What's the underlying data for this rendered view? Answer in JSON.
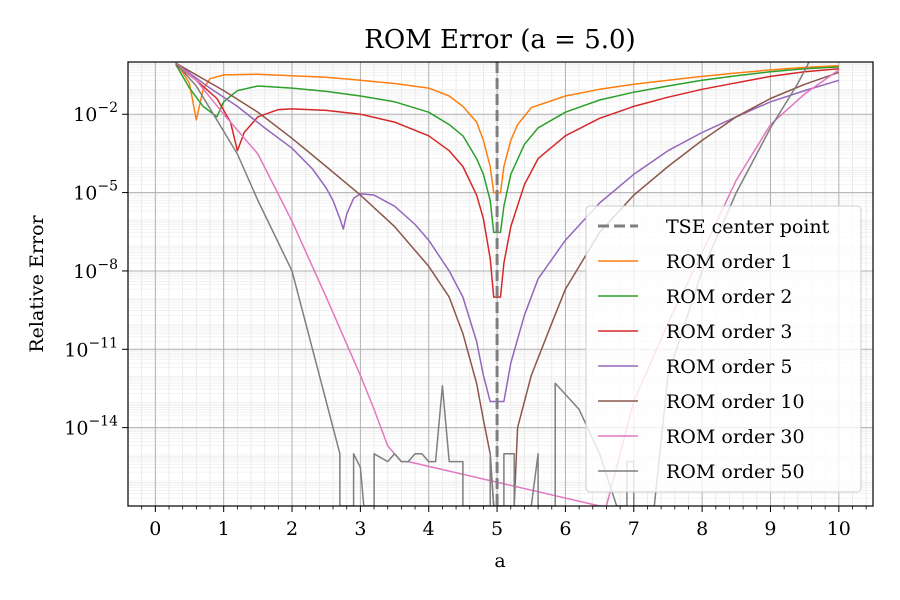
{
  "chart_data": {
    "type": "line",
    "title": "ROM Error (a = 5.0)",
    "xlabel": "a",
    "ylabel": "Relative Error",
    "yscale": "log",
    "xlim": [
      -0.4,
      10.5
    ],
    "ylim": [
      1e-17,
      1
    ],
    "grid": true,
    "minor_grid": true,
    "legend_position": "lower right",
    "x_ticks": [
      0,
      1,
      2,
      3,
      4,
      5,
      6,
      7,
      8,
      9,
      10
    ],
    "x_tick_labels": [
      "0",
      "1",
      "2",
      "3",
      "4",
      "5",
      "6",
      "7",
      "8",
      "9",
      "10"
    ],
    "y_ticks": [
      1e-14,
      1e-11,
      1e-08,
      1e-05,
      0.01
    ],
    "y_tick_labels": [
      {
        "base": "10",
        "exp": "−14"
      },
      {
        "base": "10",
        "exp": "−11"
      },
      {
        "base": "10",
        "exp": "−8"
      },
      {
        "base": "10",
        "exp": "−5"
      },
      {
        "base": "10",
        "exp": "−2"
      }
    ],
    "center_point": {
      "label": "TSE center point",
      "x": 5.0,
      "color": "#7f7f7f"
    },
    "series": [
      {
        "name": "ROM order 1",
        "color": "#ff7f0e",
        "points": [
          [
            0.3,
            0.95
          ],
          [
            0.4,
            0.4
          ],
          [
            0.5,
            0.15
          ],
          [
            0.6,
            0.006
          ],
          [
            0.7,
            0.09
          ],
          [
            0.8,
            0.23
          ],
          [
            1.0,
            0.32
          ],
          [
            1.5,
            0.34
          ],
          [
            2.0,
            0.3
          ],
          [
            2.5,
            0.26
          ],
          [
            3.0,
            0.2
          ],
          [
            3.5,
            0.15
          ],
          [
            4.0,
            0.1
          ],
          [
            4.3,
            0.05
          ],
          [
            4.5,
            0.02
          ],
          [
            4.7,
            0.005
          ],
          [
            4.8,
            0.001
          ],
          [
            4.9,
            0.0001
          ],
          [
            4.95,
            1e-05
          ],
          [
            5.05,
            1e-05
          ],
          [
            5.1,
            0.0001
          ],
          [
            5.2,
            0.001
          ],
          [
            5.3,
            0.004
          ],
          [
            5.5,
            0.018
          ],
          [
            6.0,
            0.05
          ],
          [
            6.5,
            0.09
          ],
          [
            7.0,
            0.14
          ],
          [
            7.5,
            0.2
          ],
          [
            8.0,
            0.28
          ],
          [
            8.5,
            0.38
          ],
          [
            9.0,
            0.5
          ],
          [
            9.5,
            0.62
          ],
          [
            10.0,
            0.72
          ]
        ]
      },
      {
        "name": "ROM order 2",
        "color": "#2ca02c",
        "points": [
          [
            0.3,
            0.8
          ],
          [
            0.5,
            0.1
          ],
          [
            0.7,
            0.02
          ],
          [
            0.9,
            0.008
          ],
          [
            1.0,
            0.03
          ],
          [
            1.2,
            0.08
          ],
          [
            1.5,
            0.12
          ],
          [
            2.0,
            0.1
          ],
          [
            2.5,
            0.075
          ],
          [
            3.0,
            0.05
          ],
          [
            3.5,
            0.03
          ],
          [
            4.0,
            0.012
          ],
          [
            4.3,
            0.004
          ],
          [
            4.5,
            0.0015
          ],
          [
            4.7,
            0.0002
          ],
          [
            4.8,
            5e-05
          ],
          [
            4.9,
            5e-06
          ],
          [
            4.95,
            3e-07
          ],
          [
            5.05,
            3e-07
          ],
          [
            5.1,
            3e-06
          ],
          [
            5.2,
            5e-05
          ],
          [
            5.4,
            0.0007
          ],
          [
            5.6,
            0.003
          ],
          [
            6.0,
            0.012
          ],
          [
            6.5,
            0.035
          ],
          [
            7.0,
            0.07
          ],
          [
            7.5,
            0.12
          ],
          [
            8.0,
            0.2
          ],
          [
            8.5,
            0.3
          ],
          [
            9.0,
            0.42
          ],
          [
            9.5,
            0.55
          ],
          [
            10.0,
            0.65
          ]
        ]
      },
      {
        "name": "ROM order 3",
        "color": "#d62728",
        "points": [
          [
            0.3,
            0.8
          ],
          [
            0.6,
            0.2
          ],
          [
            0.9,
            0.04
          ],
          [
            1.1,
            0.005
          ],
          [
            1.2,
            0.0004
          ],
          [
            1.3,
            0.002
          ],
          [
            1.5,
            0.008
          ],
          [
            1.8,
            0.015
          ],
          [
            2.0,
            0.016
          ],
          [
            2.5,
            0.014
          ],
          [
            3.0,
            0.01
          ],
          [
            3.5,
            0.005
          ],
          [
            4.0,
            0.0015
          ],
          [
            4.3,
            0.0004
          ],
          [
            4.5,
            0.0001
          ],
          [
            4.7,
            8e-06
          ],
          [
            4.8,
            1e-06
          ],
          [
            4.9,
            3e-08
          ],
          [
            4.95,
            1e-09
          ],
          [
            5.05,
            1e-09
          ],
          [
            5.1,
            2e-08
          ],
          [
            5.2,
            5e-07
          ],
          [
            5.4,
            2e-05
          ],
          [
            5.6,
            0.0002
          ],
          [
            6.0,
            0.0015
          ],
          [
            6.5,
            0.007
          ],
          [
            7.0,
            0.02
          ],
          [
            7.5,
            0.045
          ],
          [
            8.0,
            0.09
          ],
          [
            8.5,
            0.16
          ],
          [
            9.0,
            0.28
          ],
          [
            9.5,
            0.42
          ],
          [
            10.0,
            0.55
          ]
        ]
      },
      {
        "name": "ROM order 5",
        "color": "#9467bd",
        "points": [
          [
            0.3,
            0.9
          ],
          [
            0.8,
            0.1
          ],
          [
            1.2,
            0.02
          ],
          [
            1.6,
            0.003
          ],
          [
            2.0,
            0.0005
          ],
          [
            2.3,
            8e-05
          ],
          [
            2.5,
            1.5e-05
          ],
          [
            2.6,
            5e-06
          ],
          [
            2.7,
            1e-06
          ],
          [
            2.75,
            4e-07
          ],
          [
            2.8,
            1.5e-06
          ],
          [
            2.9,
            6e-06
          ],
          [
            3.0,
            9e-06
          ],
          [
            3.2,
            8e-06
          ],
          [
            3.5,
            3e-06
          ],
          [
            3.8,
            6e-07
          ],
          [
            4.0,
            1.5e-07
          ],
          [
            4.3,
            1e-08
          ],
          [
            4.5,
            1e-09
          ],
          [
            4.7,
            2e-11
          ],
          [
            4.8,
            1e-12
          ],
          [
            4.9,
            1e-13
          ],
          [
            5.1,
            1e-13
          ],
          [
            5.2,
            3e-12
          ],
          [
            5.4,
            2e-10
          ],
          [
            5.6,
            5e-09
          ],
          [
            6.0,
            1.5e-07
          ],
          [
            6.5,
            4e-06
          ],
          [
            7.0,
            5e-05
          ],
          [
            7.5,
            0.0004
          ],
          [
            8.0,
            0.002
          ],
          [
            8.5,
            0.008
          ],
          [
            9.0,
            0.03
          ],
          [
            9.5,
            0.08
          ],
          [
            10.0,
            0.2
          ]
        ]
      },
      {
        "name": "ROM order 10",
        "color": "#8c564b",
        "points": [
          [
            0.3,
            0.9
          ],
          [
            1.0,
            0.08
          ],
          [
            1.5,
            0.012
          ],
          [
            2.0,
            0.0012
          ],
          [
            2.5,
            0.0001
          ],
          [
            3.0,
            8e-06
          ],
          [
            3.5,
            5e-07
          ],
          [
            4.0,
            1.5e-08
          ],
          [
            4.3,
            1e-09
          ],
          [
            4.5,
            4e-11
          ],
          [
            4.7,
            5e-13
          ],
          [
            4.8,
            2e-14
          ],
          [
            4.9,
            1e-15
          ],
          [
            4.95,
            1e-17
          ],
          [
            5.25,
            1e-17
          ],
          [
            5.3,
            1e-14
          ],
          [
            5.5,
            1e-12
          ],
          [
            5.8,
            1e-10
          ],
          [
            6.0,
            2e-09
          ],
          [
            6.5,
            3e-07
          ],
          [
            7.0,
            8e-06
          ],
          [
            7.5,
            0.0001
          ],
          [
            8.0,
            0.001
          ],
          [
            8.5,
            0.008
          ],
          [
            9.0,
            0.04
          ],
          [
            9.5,
            0.14
          ],
          [
            10.0,
            0.4
          ]
        ]
      },
      {
        "name": "ROM order 30",
        "color": "#e377c2",
        "points": [
          [
            0.3,
            0.9
          ],
          [
            0.6,
            0.2
          ],
          [
            1.0,
            0.01
          ],
          [
            1.5,
            0.0003
          ],
          [
            2.0,
            8e-07
          ],
          [
            2.5,
            1e-09
          ],
          [
            3.0,
            1e-12
          ],
          [
            3.2,
            5e-14
          ],
          [
            3.4,
            2e-15
          ],
          [
            3.6,
            5e-16
          ],
          [
            3.7,
            5e-16
          ],
          [
            6.5,
            1e-17
          ],
          [
            6.6,
            1e-17
          ],
          [
            6.9,
            1e-14
          ],
          [
            7.0,
            1e-13
          ],
          [
            7.5,
            1e-10
          ],
          [
            8.0,
            5e-08
          ],
          [
            8.5,
            3e-05
          ],
          [
            9.0,
            0.004
          ],
          [
            9.5,
            0.06
          ],
          [
            10.0,
            0.5
          ]
        ]
      },
      {
        "name": "ROM order 50",
        "color": "#7f7f7f",
        "points": [
          [
            0.3,
            0.9
          ],
          [
            0.6,
            0.12
          ],
          [
            0.9,
            0.006
          ],
          [
            1.2,
            0.0003
          ],
          [
            1.5,
            5e-06
          ],
          [
            2.0,
            1e-08
          ],
          [
            2.5,
            1e-13
          ],
          [
            2.7,
            1e-15
          ],
          [
            2.7,
            1e-17
          ],
          [
            2.9,
            1e-17
          ],
          [
            2.9,
            1e-15
          ],
          [
            3.0,
            3e-16
          ],
          [
            3.05,
            1e-17
          ],
          [
            3.2,
            1e-17
          ],
          [
            3.2,
            1e-15
          ],
          [
            3.4,
            5e-16
          ],
          [
            3.5,
            1e-15
          ],
          [
            3.6,
            5e-16
          ],
          [
            3.7,
            5e-16
          ],
          [
            3.8,
            1e-15
          ],
          [
            3.9,
            1e-15
          ],
          [
            4.0,
            5e-16
          ],
          [
            4.1,
            5e-16
          ],
          [
            4.2,
            4e-13
          ],
          [
            4.3,
            5e-16
          ],
          [
            4.5,
            5e-16
          ],
          [
            4.5,
            1e-17
          ],
          [
            4.9,
            1e-17
          ],
          [
            4.9,
            1e-15
          ],
          [
            4.95,
            1e-17
          ],
          [
            5.1,
            1e-17
          ],
          [
            5.1,
            1e-15
          ],
          [
            5.25,
            1e-15
          ],
          [
            5.25,
            1e-17
          ],
          [
            5.5,
            1e-17
          ],
          [
            5.6,
            1e-15
          ],
          [
            5.6,
            1e-17
          ],
          [
            5.85,
            1e-17
          ],
          [
            5.85,
            5e-13
          ],
          [
            6.2,
            5e-14
          ],
          [
            6.5,
            1e-15
          ],
          [
            6.75,
            1e-17
          ],
          [
            6.9,
            1e-17
          ],
          [
            6.9,
            5e-16
          ],
          [
            7.0,
            5e-16
          ],
          [
            7.0,
            1e-17
          ],
          [
            7.3,
            1e-17
          ],
          [
            7.5,
            1e-12
          ],
          [
            8.0,
            1e-08
          ],
          [
            8.5,
            1e-05
          ],
          [
            9.0,
            0.003
          ],
          [
            9.4,
            0.15
          ],
          [
            9.6,
            1.5
          ]
        ]
      }
    ]
  }
}
